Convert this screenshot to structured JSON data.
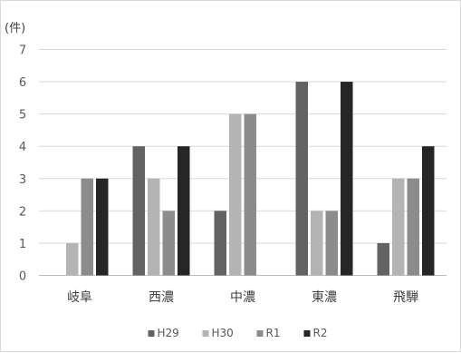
{
  "chart_data": {
    "type": "bar",
    "unit_label": "(件)",
    "categories": [
      "岐阜",
      "西濃",
      "中濃",
      "東濃",
      "飛騨"
    ],
    "ylim": [
      0,
      7
    ],
    "yticks": [
      0,
      1,
      2,
      3,
      4,
      5,
      6,
      7
    ],
    "grid": true,
    "legend_position": "bottom",
    "series": [
      {
        "name": "H29",
        "color": "#636363",
        "values": [
          0,
          4,
          2,
          6,
          1
        ]
      },
      {
        "name": "H30",
        "color": "#b4b4b4",
        "values": [
          1,
          3,
          5,
          2,
          3
        ]
      },
      {
        "name": "R1",
        "color": "#8c8c8c",
        "values": [
          3,
          2,
          5,
          2,
          3
        ]
      },
      {
        "name": "R2",
        "color": "#262626",
        "values": [
          3,
          4,
          0,
          6,
          4
        ]
      }
    ]
  }
}
